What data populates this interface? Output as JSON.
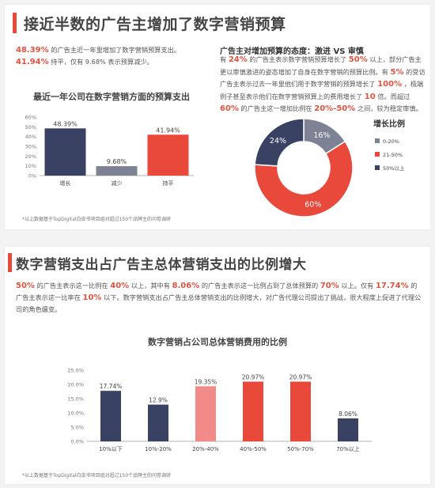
{
  "section1": {
    "title": "接近半数的广告主增加了数字营销预算",
    "intro_line1_value": "48.39%",
    "intro_line1_text": "的广告主近一年里增加了数字营销预算支出。",
    "intro_line2_value": "41.94%",
    "intro_line2_text": "持平，仅有 9.68% 表示预算减少。",
    "right_heading": "广告主对增加预算的态度：激进 VS 审慎",
    "right_p_a": "有",
    "right_v1": "24%",
    "right_p_b": "的广告主表示数字营销预算增长了",
    "right_v2": "50%",
    "right_p_c": "以上，部分广告主更以审慎激进的姿态增加了自身在数字营销的预算比例。有",
    "right_v3": "5%",
    "right_p_d": "的受访广告主表示过去一年里他们用于数字营销的预算增长了",
    "right_v4": "100%",
    "right_p_e": "，极端例子甚至表示他们在数字营销预算上的费用增长了",
    "right_v5": "10",
    "right_p_f": "倍。而超过",
    "right_v6": "60%",
    "right_p_g": "的广告主这一增加比例在",
    "right_v7": "20%-50%",
    "right_p_h": "之间，较为稳定审慎。",
    "footnote": "*以上数据基于TopDigital白皮书项目组对超过150个品牌主的问卷调研"
  },
  "section2": {
    "title": "数字营销支出占广告主总体营销支出的比例增大",
    "v1": "50%",
    "t1": "的广告主表示这一比例在",
    "v2": "40%",
    "t2": "以上，其中有",
    "v3": "8.06%",
    "t3": "的广告主表示这一比例占到了总体预算的",
    "v4": "70%",
    "t4": "以上。仅有",
    "v5": "17.74%",
    "t5": "的广告主表示这一比率在",
    "v6": "10%",
    "t6": "以下。数字营销支出占广告主总体营销支出的比例增大，对广告代理公司提出了挑战，很大程度上促进了代理公司的角色嬗变。",
    "footnote": "*以上数据基于TopDigital白皮书项目组对超过150个品牌主的问卷调研"
  },
  "colors": {
    "accent": "#e84a3a",
    "navy": "#3a4263",
    "gray": "#7d8395",
    "pink": "#f28b87",
    "red": "#e8493b",
    "lightgray": "#b9bbc4"
  },
  "chart_data": [
    {
      "type": "bar",
      "title": "最近一年公司在数字营销方面的预算支出",
      "categories": [
        "增长",
        "减少",
        "持平"
      ],
      "values": [
        48.39,
        9.68,
        41.94
      ],
      "labels": [
        "48.39%",
        "9.68%",
        "41.94%"
      ],
      "colors": [
        "#3a4263",
        "#7d8395",
        "#e8493b"
      ],
      "ylim": [
        0,
        60
      ],
      "yticks": [
        "0%",
        "10%",
        "20%",
        "30%",
        "40%",
        "50%",
        "60%"
      ]
    },
    {
      "type": "pie",
      "title": "增长比例",
      "categories": [
        "0-20%",
        "21-50%",
        "50%以上"
      ],
      "values": [
        16,
        60,
        24
      ],
      "labels": [
        "16%",
        "60%",
        "24%"
      ],
      "colors": [
        "#7d8395",
        "#e8493b",
        "#3a4263"
      ],
      "legend_position": "right"
    },
    {
      "type": "bar",
      "title": "数字营销占公司总体营销费用的比例",
      "categories": [
        "10%以下",
        "10%-20%",
        "20%-40%",
        "40%-50%",
        "50%-70%",
        "70%以上"
      ],
      "values": [
        17.74,
        12.9,
        19.35,
        20.97,
        20.97,
        8.06
      ],
      "labels": [
        "17.74%",
        "12.9%",
        "19.35%",
        "20.97%",
        "20.97%",
        "8.06%"
      ],
      "colors": [
        "#3a4263",
        "#3a4263",
        "#f28b87",
        "#e8493b",
        "#e8493b",
        "#3a4263"
      ],
      "ylim": [
        0,
        25
      ],
      "yticks": [
        "0.0%",
        "5.0%",
        "10.0%",
        "15.0%",
        "20.0%",
        "25.0%"
      ]
    }
  ]
}
